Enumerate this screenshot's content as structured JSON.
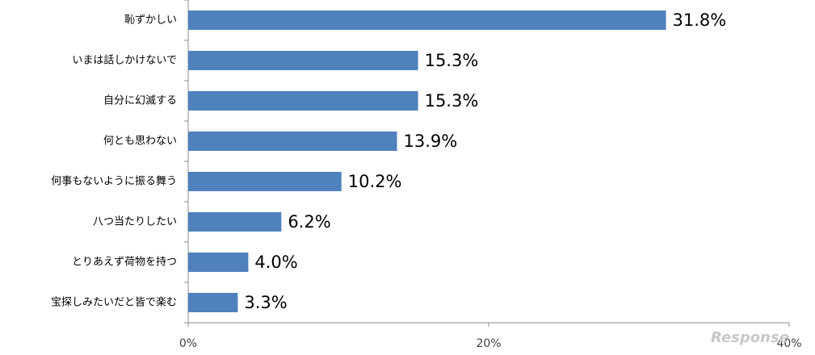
{
  "chart_data": {
    "type": "bar",
    "orientation": "horizontal",
    "categories": [
      "恥ずかしい",
      "いまは話しかけないで",
      "自分に幻滅する",
      "何とも思わない",
      "何事もないように振る舞う",
      "八つ当たりしたい",
      "とりあえず荷物を持つ",
      "宝探しみたいだと皆で楽む"
    ],
    "values": [
      31.8,
      15.3,
      15.3,
      13.9,
      10.2,
      6.2,
      4.0,
      3.3
    ],
    "value_labels": [
      "31.8%",
      "15.3%",
      "15.3%",
      "13.9%",
      "10.2%",
      "6.2%",
      "4.0%",
      "3.3%"
    ],
    "xlim": [
      0,
      40
    ],
    "x_ticks": [
      0,
      20,
      40
    ],
    "x_tick_labels": [
      "0%",
      "20%",
      "40%"
    ],
    "bar_color": "#4f81bd",
    "grid": false,
    "legend": "none"
  },
  "watermark": {
    "text": "Response"
  }
}
